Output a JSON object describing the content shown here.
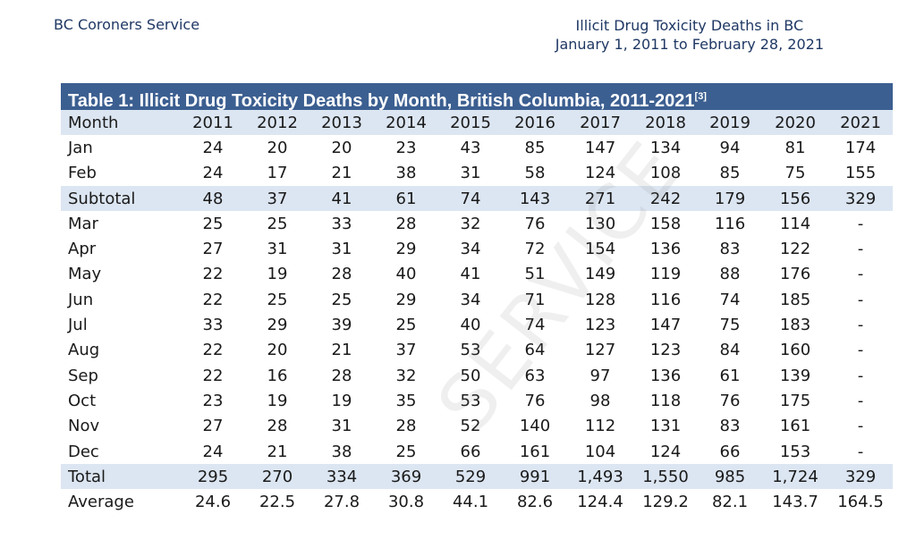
{
  "header": {
    "org": "BC Coroners Service",
    "title_line1": "Illicit Drug Toxicity Deaths in BC",
    "title_line2": "January 1, 2011 to February 28, 2021"
  },
  "table": {
    "caption": "Table 1: Illicit Drug Toxicity Deaths by Month, British Columbia, 2011-2021",
    "caption_ref": "[3]",
    "columns": [
      "Month",
      "2011",
      "2012",
      "2013",
      "2014",
      "2015",
      "2016",
      "2017",
      "2018",
      "2019",
      "2020",
      "2021"
    ],
    "rows": [
      {
        "label": "Jan",
        "values": [
          "24",
          "20",
          "20",
          "23",
          "43",
          "85",
          "147",
          "134",
          "94",
          "81",
          "174"
        ]
      },
      {
        "label": "Feb",
        "values": [
          "24",
          "17",
          "21",
          "38",
          "31",
          "58",
          "124",
          "108",
          "85",
          "75",
          "155"
        ]
      },
      {
        "label": "Subtotal",
        "values": [
          "48",
          "37",
          "41",
          "61",
          "74",
          "143",
          "271",
          "242",
          "179",
          "156",
          "329"
        ]
      },
      {
        "label": "Mar",
        "values": [
          "25",
          "25",
          "33",
          "28",
          "32",
          "76",
          "130",
          "158",
          "116",
          "114",
          "-"
        ]
      },
      {
        "label": "Apr",
        "values": [
          "27",
          "31",
          "31",
          "29",
          "34",
          "72",
          "154",
          "136",
          "83",
          "122",
          "-"
        ]
      },
      {
        "label": "May",
        "values": [
          "22",
          "19",
          "28",
          "40",
          "41",
          "51",
          "149",
          "119",
          "88",
          "176",
          "-"
        ]
      },
      {
        "label": "Jun",
        "values": [
          "22",
          "25",
          "25",
          "29",
          "34",
          "71",
          "128",
          "116",
          "74",
          "185",
          "-"
        ]
      },
      {
        "label": "Jul",
        "values": [
          "33",
          "29",
          "39",
          "25",
          "40",
          "74",
          "123",
          "147",
          "75",
          "183",
          "-"
        ]
      },
      {
        "label": "Aug",
        "values": [
          "22",
          "20",
          "21",
          "37",
          "53",
          "64",
          "127",
          "123",
          "84",
          "160",
          "-"
        ]
      },
      {
        "label": "Sep",
        "values": [
          "22",
          "16",
          "28",
          "32",
          "50",
          "63",
          "97",
          "136",
          "61",
          "139",
          "-"
        ]
      },
      {
        "label": "Oct",
        "values": [
          "23",
          "19",
          "19",
          "35",
          "53",
          "76",
          "98",
          "118",
          "76",
          "175",
          "-"
        ]
      },
      {
        "label": "Nov",
        "values": [
          "27",
          "28",
          "31",
          "28",
          "52",
          "140",
          "112",
          "131",
          "83",
          "161",
          "-"
        ]
      },
      {
        "label": "Dec",
        "values": [
          "24",
          "21",
          "38",
          "25",
          "66",
          "161",
          "104",
          "124",
          "66",
          "153",
          "-"
        ]
      },
      {
        "label": "Total",
        "values": [
          "295",
          "270",
          "334",
          "369",
          "529",
          "991",
          "1,493",
          "1,550",
          "985",
          "1,724",
          "329"
        ]
      },
      {
        "label": "Average",
        "values": [
          "24.6",
          "22.5",
          "27.8",
          "30.8",
          "44.1",
          "82.6",
          "124.4",
          "129.2",
          "82.1",
          "143.7",
          "164.5"
        ]
      }
    ]
  },
  "colors": {
    "caption_bg": "#3c5f91",
    "shaded_row_bg": "#dce6f2",
    "header_text": "#1f3864"
  }
}
